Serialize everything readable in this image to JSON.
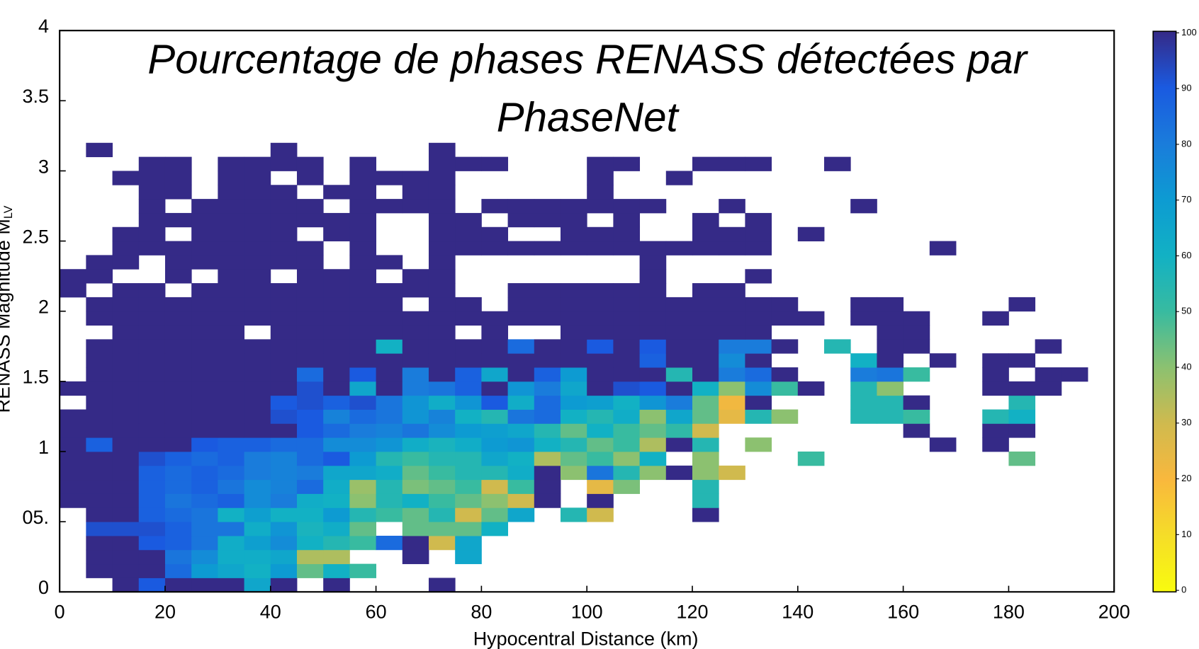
{
  "chart_data": {
    "type": "heatmap",
    "title": "Pourcentage de phases RENASS détectées par PhaseNet",
    "xlabel": "Hypocentral Distance (km)",
    "ylabel": "RENASS Magnitude M",
    "ylabel_sub": "LV",
    "xlim": [
      0,
      200
    ],
    "ylim": [
      0,
      4
    ],
    "xticks": [
      0,
      20,
      40,
      60,
      80,
      100,
      120,
      140,
      160,
      180,
      200
    ],
    "yticks": [
      0,
      {
        "value": 0.5,
        "label": "05."
      },
      1,
      1.5,
      2,
      2.5,
      3,
      3.5,
      4
    ],
    "clim": [
      0,
      100
    ],
    "cbar_ticks": [
      0,
      10,
      20,
      30,
      40,
      50,
      60,
      70,
      80,
      90,
      100
    ],
    "colormap": [
      "#f9fb0e",
      "#f5dd28",
      "#f9b83d",
      "#d0ba4e",
      "#8cc170",
      "#38bba0",
      "#12b1c4",
      "#0d9bd2",
      "#1a7cdb",
      "#1a5ae0",
      "#352a87"
    ],
    "grid": false,
    "xbins": [
      0,
      5,
      10,
      15,
      20,
      25,
      30,
      35,
      40,
      45,
      50,
      55,
      60,
      65,
      70,
      75,
      80,
      85,
      90,
      95,
      100,
      105,
      110,
      115,
      120,
      125,
      130,
      135,
      140,
      145,
      150,
      155,
      160,
      165,
      170,
      175,
      180,
      185,
      190,
      195,
      200
    ],
    "ybins": [
      0,
      0.1,
      0.2,
      0.3,
      0.4,
      0.5,
      0.6,
      0.7,
      0.8,
      0.9,
      1,
      1.1,
      1.2,
      1.3,
      1.4,
      1.5,
      1.6,
      1.7,
      1.8,
      1.9,
      2,
      2.1,
      2.2,
      2.3,
      2.4,
      2.5,
      2.6,
      2.7,
      2.8,
      2.9,
      3,
      3.1,
      3.2
    ],
    "z": [
      [
        null,
        null,
        100,
        90,
        100,
        100,
        100,
        65,
        100,
        null,
        100,
        null,
        null,
        null,
        100,
        null,
        null,
        null,
        null,
        null,
        null,
        null,
        null,
        null,
        null,
        null,
        null,
        null,
        null,
        null,
        null,
        null,
        null,
        null,
        null,
        null,
        null,
        null,
        null,
        null
      ],
      [
        null,
        100,
        100,
        100,
        85,
        70,
        65,
        60,
        70,
        45,
        60,
        50,
        null,
        null,
        null,
        null,
        null,
        null,
        null,
        null,
        null,
        null,
        null,
        null,
        null,
        null,
        null,
        null,
        null,
        null,
        null,
        null,
        null,
        null,
        null,
        null,
        null,
        null,
        null,
        null
      ],
      [
        null,
        100,
        100,
        100,
        82,
        75,
        62,
        62,
        65,
        35,
        35,
        null,
        null,
        100,
        null,
        65,
        null,
        null,
        null,
        null,
        null,
        null,
        null,
        null,
        null,
        null,
        null,
        null,
        null,
        null,
        null,
        null,
        null,
        null,
        null,
        null,
        null,
        null,
        null,
        null
      ],
      [
        null,
        100,
        100,
        90,
        88,
        82,
        62,
        68,
        75,
        60,
        55,
        50,
        85,
        100,
        30,
        65,
        null,
        null,
        null,
        null,
        null,
        null,
        null,
        null,
        null,
        null,
        null,
        null,
        null,
        null,
        null,
        null,
        null,
        null,
        null,
        null,
        null,
        null,
        null,
        null
      ],
      [
        null,
        92,
        92,
        92,
        88,
        82,
        82,
        62,
        72,
        58,
        62,
        45,
        null,
        45,
        45,
        45,
        60,
        null,
        null,
        null,
        null,
        null,
        null,
        null,
        null,
        null,
        null,
        null,
        null,
        null,
        null,
        null,
        null,
        null,
        null,
        null,
        null,
        null,
        null,
        null
      ],
      [
        null,
        100,
        100,
        88,
        85,
        82,
        60,
        68,
        60,
        60,
        70,
        55,
        50,
        45,
        55,
        30,
        45,
        65,
        null,
        55,
        30,
        null,
        null,
        null,
        100,
        null,
        null,
        null,
        null,
        null,
        null,
        null,
        null,
        null,
        null,
        null,
        null,
        null,
        null,
        null
      ],
      [
        100,
        100,
        100,
        88,
        82,
        85,
        88,
        75,
        80,
        62,
        60,
        40,
        55,
        60,
        50,
        45,
        40,
        30,
        100,
        null,
        100,
        null,
        null,
        null,
        55,
        null,
        null,
        null,
        null,
        null,
        null,
        null,
        null,
        null,
        null,
        null,
        null,
        null,
        null,
        null
      ],
      [
        100,
        100,
        100,
        88,
        85,
        88,
        82,
        75,
        78,
        85,
        62,
        38,
        55,
        42,
        45,
        50,
        30,
        50,
        100,
        null,
        25,
        42,
        null,
        null,
        55,
        null,
        null,
        null,
        null,
        null,
        null,
        null,
        null,
        null,
        null,
        null,
        null,
        null,
        null,
        null
      ],
      [
        100,
        100,
        100,
        88,
        85,
        88,
        85,
        80,
        78,
        80,
        65,
        65,
        62,
        45,
        50,
        55,
        55,
        62,
        100,
        40,
        82,
        55,
        40,
        100,
        40,
        30,
        null,
        null,
        null,
        null,
        null,
        null,
        null,
        null,
        null,
        null,
        null,
        null,
        null,
        null
      ],
      [
        100,
        100,
        100,
        92,
        88,
        85,
        88,
        80,
        78,
        85,
        90,
        70,
        55,
        50,
        55,
        55,
        65,
        60,
        35,
        45,
        50,
        40,
        60,
        null,
        40,
        null,
        null,
        null,
        50,
        null,
        null,
        null,
        null,
        null,
        null,
        null,
        45,
        null,
        null,
        null
      ],
      [
        100,
        88,
        100,
        100,
        100,
        90,
        88,
        88,
        85,
        85,
        75,
        75,
        72,
        62,
        58,
        62,
        70,
        72,
        60,
        55,
        45,
        50,
        35,
        100,
        55,
        null,
        40,
        null,
        null,
        null,
        null,
        null,
        null,
        100,
        null,
        100,
        null,
        null,
        null,
        null
      ],
      [
        100,
        100,
        100,
        100,
        100,
        100,
        100,
        100,
        100,
        90,
        85,
        80,
        78,
        82,
        75,
        70,
        68,
        65,
        55,
        45,
        60,
        50,
        45,
        52,
        30,
        null,
        null,
        null,
        null,
        null,
        null,
        null,
        100,
        null,
        null,
        100,
        100,
        null,
        null,
        null
      ],
      [
        100,
        100,
        100,
        100,
        100,
        100,
        100,
        100,
        92,
        90,
        78,
        85,
        82,
        72,
        78,
        60,
        55,
        82,
        85,
        60,
        55,
        62,
        40,
        65,
        45,
        25,
        55,
        40,
        null,
        null,
        55,
        55,
        50,
        null,
        null,
        55,
        60,
        null,
        null,
        null
      ],
      [
        null,
        100,
        100,
        100,
        100,
        100,
        100,
        100,
        90,
        92,
        88,
        92,
        82,
        72,
        62,
        72,
        90,
        62,
        85,
        70,
        68,
        60,
        72,
        80,
        45,
        22,
        100,
        null,
        null,
        null,
        55,
        55,
        100,
        null,
        null,
        null,
        55,
        null,
        null,
        null
      ],
      [
        100,
        100,
        100,
        100,
        100,
        100,
        100,
        100,
        100,
        92,
        100,
        65,
        100,
        80,
        82,
        88,
        100,
        72,
        80,
        65,
        100,
        92,
        90,
        100,
        60,
        40,
        75,
        50,
        100,
        null,
        55,
        40,
        null,
        null,
        null,
        100,
        100,
        100,
        null,
        null
      ],
      [
        null,
        100,
        100,
        100,
        100,
        100,
        100,
        100,
        100,
        85,
        100,
        90,
        100,
        80,
        100,
        88,
        65,
        100,
        88,
        70,
        100,
        100,
        100,
        55,
        100,
        80,
        85,
        100,
        null,
        null,
        80,
        82,
        50,
        null,
        null,
        100,
        null,
        100,
        100,
        null
      ],
      [
        null,
        100,
        100,
        100,
        100,
        100,
        100,
        100,
        100,
        100,
        100,
        100,
        100,
        100,
        100,
        100,
        100,
        100,
        100,
        100,
        100,
        100,
        88,
        100,
        100,
        75,
        100,
        null,
        null,
        null,
        60,
        100,
        null,
        100,
        null,
        100,
        100,
        null,
        null,
        null
      ],
      [
        null,
        100,
        100,
        100,
        100,
        100,
        100,
        100,
        100,
        100,
        100,
        100,
        60,
        100,
        100,
        100,
        100,
        85,
        100,
        100,
        90,
        100,
        90,
        100,
        100,
        80,
        80,
        100,
        null,
        55,
        null,
        100,
        100,
        null,
        null,
        null,
        null,
        100,
        null,
        null
      ],
      [
        null,
        null,
        100,
        100,
        100,
        100,
        100,
        null,
        100,
        100,
        100,
        100,
        100,
        100,
        100,
        null,
        100,
        null,
        null,
        100,
        100,
        100,
        100,
        100,
        100,
        100,
        100,
        null,
        null,
        null,
        null,
        100,
        100,
        null,
        null,
        null,
        null,
        null,
        null,
        null
      ],
      [
        null,
        100,
        100,
        100,
        100,
        100,
        100,
        100,
        100,
        100,
        100,
        100,
        100,
        100,
        100,
        100,
        100,
        100,
        100,
        100,
        100,
        100,
        100,
        100,
        100,
        100,
        100,
        100,
        100,
        null,
        100,
        100,
        100,
        null,
        null,
        100,
        null,
        null,
        null,
        null
      ],
      [
        null,
        100,
        100,
        100,
        100,
        100,
        100,
        100,
        100,
        100,
        100,
        100,
        100,
        null,
        100,
        100,
        null,
        100,
        100,
        100,
        100,
        100,
        100,
        100,
        100,
        100,
        100,
        100,
        null,
        null,
        100,
        100,
        null,
        null,
        null,
        null,
        100,
        null,
        null,
        null
      ],
      [
        100,
        null,
        100,
        100,
        null,
        100,
        100,
        100,
        100,
        100,
        100,
        100,
        100,
        100,
        100,
        null,
        null,
        100,
        100,
        100,
        100,
        100,
        100,
        null,
        100,
        100,
        null,
        null,
        null,
        null,
        null,
        null,
        null,
        null,
        null,
        null,
        null,
        null,
        null,
        null
      ],
      [
        100,
        100,
        null,
        null,
        100,
        null,
        100,
        100,
        null,
        100,
        100,
        100,
        null,
        100,
        100,
        null,
        null,
        null,
        null,
        null,
        null,
        null,
        100,
        null,
        null,
        null,
        100,
        null,
        null,
        null,
        null,
        null,
        null,
        null,
        null,
        null,
        null,
        null,
        null,
        null
      ],
      [
        null,
        100,
        100,
        null,
        100,
        100,
        100,
        100,
        100,
        100,
        null,
        100,
        100,
        null,
        100,
        null,
        null,
        null,
        null,
        null,
        null,
        null,
        100,
        null,
        null,
        null,
        null,
        null,
        null,
        null,
        null,
        null,
        null,
        null,
        null,
        null,
        null,
        null,
        null,
        null
      ],
      [
        null,
        null,
        100,
        100,
        100,
        100,
        100,
        100,
        100,
        100,
        null,
        100,
        null,
        null,
        100,
        100,
        100,
        100,
        100,
        100,
        100,
        100,
        100,
        100,
        100,
        100,
        100,
        null,
        null,
        null,
        null,
        null,
        null,
        100,
        null,
        null,
        null,
        null,
        null,
        null
      ],
      [
        null,
        null,
        100,
        100,
        null,
        100,
        100,
        100,
        100,
        null,
        100,
        100,
        null,
        null,
        100,
        100,
        100,
        null,
        null,
        100,
        100,
        100,
        null,
        null,
        100,
        100,
        100,
        null,
        100,
        null,
        null,
        null,
        null,
        null,
        null,
        null,
        null,
        null,
        null,
        null
      ],
      [
        null,
        null,
        null,
        100,
        100,
        100,
        100,
        100,
        100,
        100,
        100,
        100,
        null,
        null,
        100,
        100,
        null,
        100,
        100,
        100,
        null,
        100,
        null,
        null,
        100,
        null,
        100,
        null,
        null,
        null,
        null,
        null,
        null,
        null,
        null,
        null,
        null,
        null,
        null,
        null
      ],
      [
        null,
        null,
        null,
        100,
        null,
        100,
        100,
        100,
        100,
        100,
        null,
        100,
        100,
        100,
        100,
        null,
        100,
        100,
        100,
        100,
        100,
        100,
        100,
        null,
        null,
        100,
        null,
        null,
        null,
        null,
        100,
        null,
        null,
        null,
        null,
        null,
        null,
        null,
        null,
        null
      ],
      [
        null,
        null,
        null,
        100,
        100,
        null,
        100,
        100,
        100,
        null,
        100,
        100,
        null,
        100,
        100,
        null,
        null,
        null,
        null,
        null,
        100,
        null,
        null,
        null,
        null,
        null,
        null,
        null,
        null,
        null,
        null,
        null,
        null,
        null,
        null,
        null,
        null,
        null,
        null,
        null
      ],
      [
        null,
        null,
        100,
        100,
        100,
        null,
        100,
        100,
        null,
        100,
        null,
        100,
        100,
        100,
        100,
        null,
        null,
        null,
        null,
        null,
        100,
        null,
        null,
        100,
        null,
        null,
        null,
        null,
        null,
        null,
        null,
        null,
        null,
        null,
        null,
        null,
        null,
        null,
        null,
        null
      ],
      [
        null,
        null,
        null,
        100,
        100,
        null,
        100,
        100,
        100,
        100,
        null,
        100,
        null,
        null,
        100,
        100,
        100,
        null,
        null,
        null,
        100,
        100,
        null,
        null,
        100,
        100,
        100,
        null,
        null,
        100,
        null,
        null,
        null,
        null,
        null,
        null,
        null,
        null,
        null,
        null
      ],
      [
        null,
        100,
        null,
        null,
        null,
        null,
        null,
        null,
        100,
        null,
        null,
        null,
        null,
        null,
        100,
        null,
        null,
        null,
        null,
        null,
        null,
        null,
        null,
        null,
        null,
        null,
        null,
        null,
        null,
        null,
        null,
        null,
        null,
        null,
        null,
        null,
        null,
        null,
        null,
        null
      ]
    ]
  }
}
